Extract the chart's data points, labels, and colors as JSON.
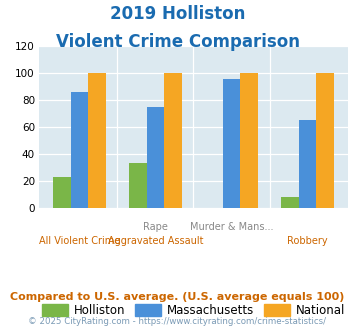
{
  "title_line1": "2019 Holliston",
  "title_line2": "Violent Crime Comparison",
  "cat_labels_row1": [
    "",
    "Rape",
    "Murder & Mans...",
    ""
  ],
  "cat_labels_row2": [
    "All Violent Crime",
    "Aggravated Assault",
    "",
    "Robbery"
  ],
  "holliston": [
    23,
    33,
    0,
    8
  ],
  "massachusetts": [
    86,
    75,
    96,
    65
  ],
  "national": [
    100,
    100,
    100,
    100
  ],
  "holliston_color": "#7ab648",
  "massachusetts_color": "#4a90d9",
  "national_color": "#f5a623",
  "ylim": [
    0,
    120
  ],
  "yticks": [
    0,
    20,
    40,
    60,
    80,
    100,
    120
  ],
  "background_color": "#dce9f0",
  "title_color": "#1a6bb0",
  "footer_text": "Compared to U.S. average. (U.S. average equals 100)",
  "copyright_text": "© 2025 CityRating.com - https://www.cityrating.com/crime-statistics/",
  "footer_color": "#cc6600",
  "copyright_color": "#7a9ab5",
  "row1_color": "#888888",
  "row2_color": "#cc6600"
}
